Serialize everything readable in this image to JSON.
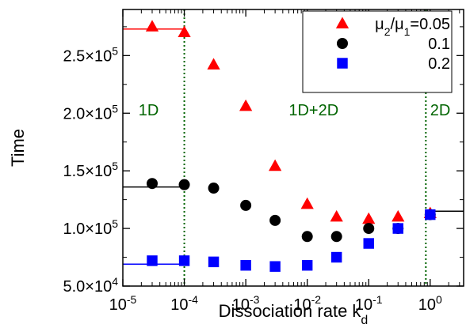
{
  "chart_data": {
    "type": "scatter",
    "xlabel": "Dissociation rate k_d",
    "ylabel": "Time",
    "x_scale": "log",
    "xlim": [
      1e-05,
      3.5
    ],
    "ylim": [
      50000,
      290000
    ],
    "x_ticks": [
      {
        "value": 1e-05,
        "base": "10",
        "exp": "-5"
      },
      {
        "value": 0.0001,
        "base": "10",
        "exp": "-4"
      },
      {
        "value": 0.001,
        "base": "10",
        "exp": "-3"
      },
      {
        "value": 0.01,
        "base": "10",
        "exp": "-2"
      },
      {
        "value": 0.1,
        "base": "10",
        "exp": "-1"
      },
      {
        "value": 1,
        "base": "10",
        "exp": "0"
      }
    ],
    "y_ticks": [
      {
        "value": 50000,
        "mant": "5.0×10",
        "exp": "4"
      },
      {
        "value": 100000,
        "mant": "1.0×10",
        "exp": "5"
      },
      {
        "value": 150000,
        "mant": "1.5×10",
        "exp": "5"
      },
      {
        "value": 200000,
        "mant": "2.0×10",
        "exp": "5"
      },
      {
        "value": 250000,
        "mant": "2.5×10",
        "exp": "5"
      }
    ],
    "vlines": [
      0.0001,
      0.85
    ],
    "regions": [
      {
        "label": "1D",
        "x": 1.8e-05,
        "y": 198000
      },
      {
        "label": "1D+2D",
        "x": 0.005,
        "y": 198000
      },
      {
        "label": "2D",
        "x": 1.0,
        "y": 198000
      }
    ],
    "legend": {
      "title_parts": {
        "mu": "μ",
        "sub2": "2",
        "slash": "/",
        "sub1": "1",
        "eq": "=0.05"
      },
      "position": "top-right"
    },
    "series": [
      {
        "label": "0.05",
        "marker": "triangle",
        "color": "#ff0000",
        "x": [
          3e-05,
          0.0001,
          0.0003,
          0.001,
          0.003,
          0.01,
          0.03,
          0.1,
          0.3,
          1
        ],
        "y": [
          275000,
          270000,
          242000,
          206000,
          154000,
          121000,
          110000,
          108000,
          110000,
          113000
        ],
        "limit_left": 273000,
        "limit_right": null
      },
      {
        "label": "0.1",
        "marker": "circle",
        "color": "#000000",
        "x": [
          3e-05,
          0.0001,
          0.0003,
          0.001,
          0.003,
          0.01,
          0.03,
          0.1,
          0.3,
          1
        ],
        "y": [
          139000,
          138000,
          135000,
          120000,
          107000,
          93000,
          93000,
          100000,
          100000,
          112000
        ],
        "limit_left": 136000,
        "limit_right": 115000
      },
      {
        "label": "0.2",
        "marker": "square",
        "color": "#0000ff",
        "x": [
          3e-05,
          0.0001,
          0.0003,
          0.001,
          0.003,
          0.01,
          0.03,
          0.1,
          0.3,
          1
        ],
        "y": [
          72000,
          72000,
          71000,
          68000,
          67000,
          68000,
          75000,
          87000,
          100000,
          112000
        ],
        "limit_left": 69000,
        "limit_right": null
      }
    ]
  }
}
